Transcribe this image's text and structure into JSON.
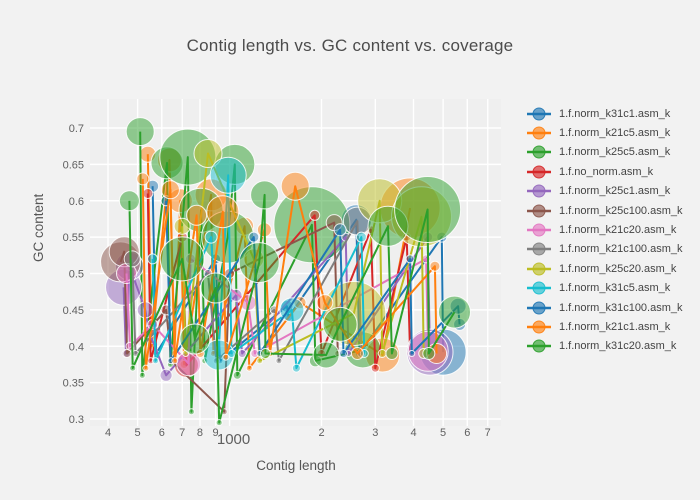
{
  "title": "Contig length vs. GC content vs. coverage",
  "axes": {
    "x_label": "Contig length",
    "y_label": "GC content"
  },
  "colors": {
    "paper_bg": "#f2f2f2",
    "plot_bg": "#efefef",
    "grid": "#ffffff",
    "title_text": "#4c4c4c",
    "tick_text": "#5f5f5f",
    "legend_text": "#444444"
  },
  "chart_data": {
    "type": "scatter",
    "mode": "lines+markers",
    "marker_sizing": "bubble size encodes coverage",
    "x_axis": {
      "scale": "log",
      "range": [
        349,
        7740
      ],
      "title": "Contig length"
    },
    "y_axis": {
      "scale": "linear",
      "range": [
        0.29,
        0.74
      ],
      "title": "GC content"
    },
    "x_ticks": [
      {
        "v": 400,
        "label": "4"
      },
      {
        "v": 500,
        "label": "5"
      },
      {
        "v": 600,
        "label": "6"
      },
      {
        "v": 700,
        "label": "7"
      },
      {
        "v": 800,
        "label": "8"
      },
      {
        "v": 900,
        "label": "9"
      },
      {
        "v": 1000,
        "label": "1000",
        "major": true
      },
      {
        "v": 2000,
        "label": "2"
      },
      {
        "v": 3000,
        "label": "3"
      },
      {
        "v": 4000,
        "label": "4"
      },
      {
        "v": 5000,
        "label": "5"
      },
      {
        "v": 6000,
        "label": "6"
      },
      {
        "v": 7000,
        "label": "7"
      }
    ],
    "y_ticks": [
      {
        "v": 0.3,
        "label": "0.3"
      },
      {
        "v": 0.35,
        "label": "0.35"
      },
      {
        "v": 0.4,
        "label": "0.4"
      },
      {
        "v": 0.45,
        "label": "0.45"
      },
      {
        "v": 0.5,
        "label": "0.5"
      },
      {
        "v": 0.55,
        "label": "0.55"
      },
      {
        "v": 0.6,
        "label": "0.6"
      },
      {
        "v": 0.65,
        "label": "0.65"
      },
      {
        "v": 0.7,
        "label": "0.7"
      }
    ],
    "series": [
      {
        "name": "1.f.norm_k31c1.asm_k",
        "color": "#1f77b4",
        "points": [
          [
            560,
            0.62,
            6
          ],
          [
            575,
            0.39,
            3
          ],
          [
            900,
            0.52,
            5
          ],
          [
            930,
            0.38,
            3
          ],
          [
            1540,
            0.455,
            6
          ],
          [
            1560,
            0.44,
            4
          ],
          [
            2600,
            0.574,
            15
          ],
          [
            2660,
            0.39,
            4
          ],
          [
            4950,
            0.55,
            5
          ],
          [
            5000,
            0.392,
            23
          ]
        ]
      },
      {
        "name": "1.f.norm_k21c5.asm_k",
        "color": "#ff7f0e",
        "points": [
          [
            540,
            0.664,
            8
          ],
          [
            556,
            0.4,
            3
          ],
          [
            636,
            0.656,
            12
          ],
          [
            660,
            0.39,
            3
          ],
          [
            690,
            0.6,
            12
          ],
          [
            710,
            0.375,
            4
          ],
          [
            870,
            0.608,
            16
          ],
          [
            885,
            0.39,
            3
          ],
          [
            1120,
            0.565,
            9
          ],
          [
            1160,
            0.37,
            3
          ],
          [
            1700,
            0.46,
            6
          ],
          [
            3170,
            0.388,
            17
          ],
          [
            3900,
            0.59,
            30
          ]
        ]
      },
      {
        "name": "1.f.norm_k25c5.asm_k",
        "color": "#2ca02c",
        "points": [
          [
            510,
            0.695,
            14
          ],
          [
            518,
            0.36,
            3
          ],
          [
            624,
            0.652,
            16
          ],
          [
            640,
            0.375,
            3
          ],
          [
            730,
            0.66,
            28
          ],
          [
            750,
            0.31,
            3
          ],
          [
            806,
            0.587,
            22
          ],
          [
            830,
            0.38,
            3
          ],
          [
            986,
            0.55,
            26
          ],
          [
            1040,
            0.65,
            20
          ],
          [
            1060,
            0.36,
            4
          ],
          [
            1860,
            0.567,
            38
          ],
          [
            1910,
            0.38,
            6
          ],
          [
            2730,
            0.395,
            18
          ]
        ]
      },
      {
        "name": "1.f.no_norm.asm_k",
        "color": "#d62728",
        "points": [
          [
            540,
            0.61,
            5
          ],
          [
            552,
            0.38,
            3
          ],
          [
            700,
            0.55,
            5
          ],
          [
            722,
            0.374,
            12
          ],
          [
            1900,
            0.58,
            5
          ],
          [
            2000,
            0.39,
            4
          ],
          [
            2900,
            0.56,
            4
          ],
          [
            3000,
            0.37,
            4
          ],
          [
            3800,
            0.55,
            4
          ],
          [
            3900,
            0.39,
            3
          ]
        ]
      },
      {
        "name": "1.f.norm_k25c1.asm_k",
        "color": "#9467bd",
        "points": [
          [
            450,
            0.481,
            18
          ],
          [
            458,
            0.39,
            4
          ],
          [
            470,
            0.51,
            14
          ],
          [
            530,
            0.45,
            8
          ],
          [
            545,
            0.42,
            6
          ],
          [
            620,
            0.36,
            6
          ],
          [
            1050,
            0.47,
            6
          ],
          [
            1100,
            0.39,
            4
          ],
          [
            2400,
            0.55,
            4
          ],
          [
            2450,
            0.39,
            3
          ],
          [
            4450,
            0.55,
            5
          ],
          [
            4530,
            0.392,
            23
          ]
        ]
      },
      {
        "name": "1.f.norm_k25c100.asm_k",
        "color": "#8c564b",
        "points": [
          [
            440,
            0.516,
            20
          ],
          [
            452,
            0.53,
            15
          ],
          [
            462,
            0.39,
            4
          ],
          [
            620,
            0.45,
            5
          ],
          [
            645,
            0.38,
            3
          ],
          [
            960,
            0.31,
            3
          ],
          [
            1000,
            0.5,
            5
          ],
          [
            2200,
            0.57,
            8
          ],
          [
            2260,
            0.39,
            3
          ]
        ]
      },
      {
        "name": "1.f.norm_k21c20.asm_k",
        "color": "#e377c2",
        "points": [
          [
            460,
            0.5,
            10
          ],
          [
            472,
            0.4,
            4
          ],
          [
            560,
            0.43,
            5
          ],
          [
            735,
            0.376,
            12
          ],
          [
            745,
            0.52,
            5
          ],
          [
            1150,
            0.46,
            8
          ],
          [
            1210,
            0.39,
            4
          ],
          [
            4400,
            0.52,
            4
          ],
          [
            4470,
            0.393,
            20
          ]
        ]
      },
      {
        "name": "1.f.norm_k21c100.asm_k",
        "color": "#7f7f7f",
        "points": [
          [
            480,
            0.52,
            8
          ],
          [
            492,
            0.39,
            3
          ],
          [
            850,
            0.5,
            4
          ],
          [
            905,
            0.38,
            3
          ],
          [
            1400,
            0.45,
            4
          ],
          [
            1450,
            0.38,
            3
          ],
          [
            2620,
            0.572,
            14
          ],
          [
            2700,
            0.39,
            4
          ]
        ]
      },
      {
        "name": "1.f.norm_k25c20.asm_k",
        "color": "#bcbd22",
        "points": [
          [
            700,
            0.565,
            8
          ],
          [
            718,
            0.39,
            3
          ],
          [
            850,
            0.665,
            14
          ],
          [
            1200,
            0.52,
            10
          ],
          [
            1255,
            0.38,
            3
          ],
          [
            2550,
            0.445,
            32
          ],
          [
            3100,
            0.6,
            22
          ],
          [
            3160,
            0.39,
            4
          ],
          [
            4250,
            0.578,
            30
          ],
          [
            4320,
            0.39,
            5
          ]
        ]
      },
      {
        "name": "1.f.norm_k31c5.asm_k",
        "color": "#17becf",
        "points": [
          [
            560,
            0.52,
            5
          ],
          [
            572,
            0.38,
            3
          ],
          [
            870,
            0.55,
            6
          ],
          [
            920,
            0.388,
            15
          ],
          [
            990,
            0.635,
            18
          ],
          [
            1015,
            0.39,
            4
          ],
          [
            1600,
            0.45,
            12
          ],
          [
            1655,
            0.37,
            4
          ],
          [
            2700,
            0.55,
            5
          ],
          [
            2760,
            0.39,
            4
          ]
        ]
      },
      {
        "name": "1.f.norm_k31c100.asm_k",
        "color": "#1f77b4",
        "points": [
          [
            620,
            0.6,
            5
          ],
          [
            642,
            0.38,
            3
          ],
          [
            1200,
            0.55,
            5
          ],
          [
            1256,
            0.39,
            3
          ],
          [
            2300,
            0.56,
            6
          ],
          [
            2360,
            0.39,
            4
          ],
          [
            3900,
            0.52,
            4
          ],
          [
            3950,
            0.39,
            3
          ],
          [
            5600,
            0.455,
            8
          ],
          [
            5660,
            0.43,
            6
          ]
        ]
      },
      {
        "name": "1.f.norm_k21c1.asm_k",
        "color": "#ff7f0e",
        "points": [
          [
            520,
            0.63,
            6
          ],
          [
            532,
            0.37,
            3
          ],
          [
            640,
            0.615,
            9
          ],
          [
            662,
            0.38,
            3
          ],
          [
            780,
            0.58,
            10
          ],
          [
            802,
            0.39,
            4
          ],
          [
            950,
            0.585,
            16
          ],
          [
            972,
            0.385,
            3
          ],
          [
            1300,
            0.56,
            7
          ],
          [
            1355,
            0.39,
            3
          ],
          [
            1640,
            0.62,
            14
          ],
          [
            2050,
            0.46,
            8
          ],
          [
            2620,
            0.39,
            6
          ],
          [
            4700,
            0.51,
            5
          ],
          [
            4760,
            0.39,
            10
          ]
        ]
      },
      {
        "name": "1.f.norm_k31c20.asm_k",
        "color": "#2ca02c",
        "points": [
          [
            470,
            0.6,
            10
          ],
          [
            482,
            0.37,
            3
          ],
          [
            700,
            0.52,
            22
          ],
          [
            770,
            0.41,
            15
          ],
          [
            900,
            0.48,
            15
          ],
          [
            925,
            0.295,
            3
          ],
          [
            1250,
            0.515,
            20
          ],
          [
            1302,
            0.608,
            14
          ],
          [
            1310,
            0.39,
            5
          ],
          [
            2070,
            0.388,
            13
          ],
          [
            2300,
            0.43,
            17
          ],
          [
            3300,
            0.565,
            20
          ],
          [
            3400,
            0.39,
            6
          ],
          [
            4450,
            0.588,
            33
          ],
          [
            4490,
            0.39,
            6
          ],
          [
            5450,
            0.447,
            16
          ]
        ]
      }
    ]
  }
}
